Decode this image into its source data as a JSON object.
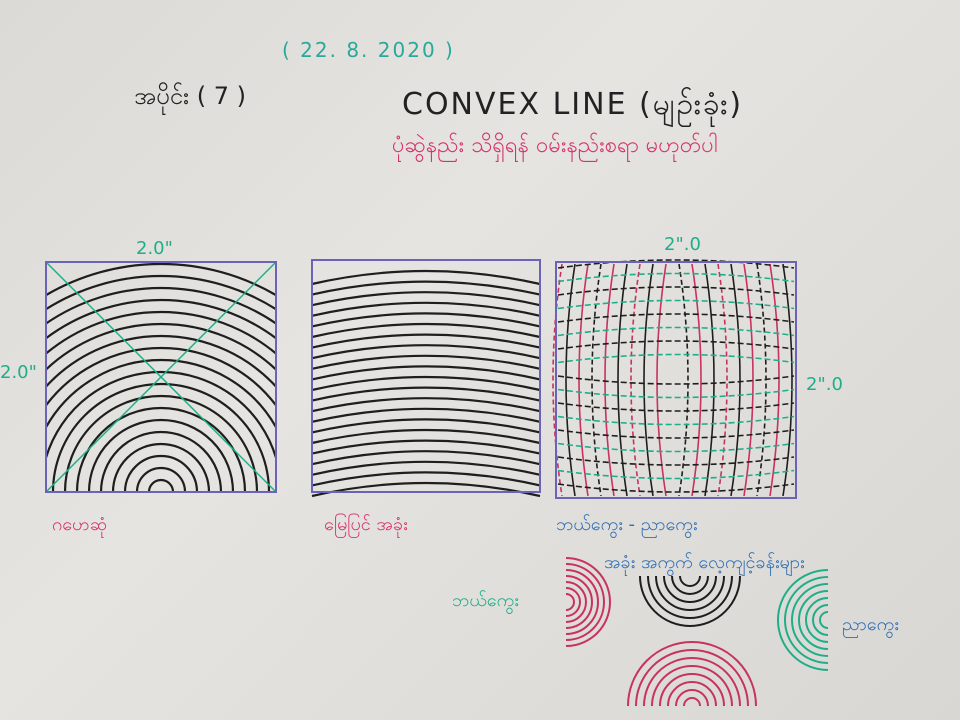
{
  "texts": {
    "date": "( 22. 8. 2020 )",
    "lesson": "အပိုင်း ( 7 )",
    "title": "CONVEX LINE (မျဉ်းခုံး)",
    "subtitle": "ပုံဆွဲနည်း သိရှိရန် ၀မ်းနည်းစရာ မဟုတ်ပါ",
    "dim_top_1": "2.0\"",
    "dim_left_1": "2.0\"",
    "dim_top_3": "2\".0",
    "dim_right_3": "2\".0",
    "caption_1": "ဂဟေဆုံ",
    "caption_2": "မြေပြင် အခုံး",
    "caption_3": "ဘယ်ကွေး - ညာကွေး",
    "caption_3b": "အခုံး အကွက် လေ့ကျင့်ခန်းများ",
    "label_left": "ဘယ်ကွေး",
    "label_right": "ညာကွေး"
  },
  "colors": {
    "ink_black": "#1e1e1e",
    "ink_pink": "#c8325f",
    "ink_green": "#1fae8a",
    "ink_blue": "#2f6fb4",
    "box_purple": "#6b63b8"
  }
}
